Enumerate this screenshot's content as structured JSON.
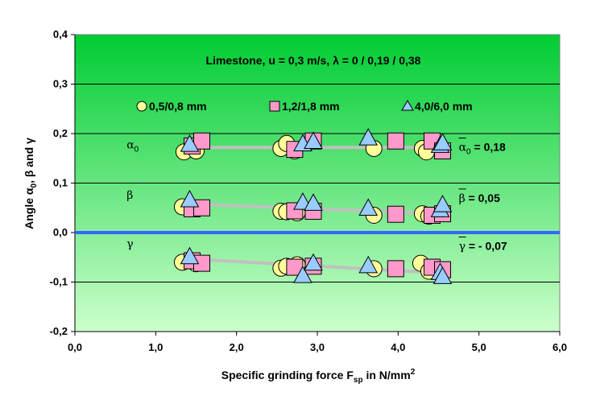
{
  "chart_data": {
    "type": "scatter",
    "title": "Limestone, u = 0,3 m/s, λ = 0 / 0,19 / 0,38",
    "xlabel": "Specific grinding force F",
    "xlabel_sub": "sp",
    "xlabel_unit": " in N/mm",
    "xlabel_sup": "2",
    "ylabel": "Angle α",
    "ylabel_sub": "0",
    "ylabel_rest": ", β and γ",
    "xlim": [
      0,
      6
    ],
    "ylim": [
      -0.2,
      0.4
    ],
    "x_ticks": [
      "0,0",
      "1,0",
      "2,0",
      "3,0",
      "4,0",
      "5,0",
      "6,0"
    ],
    "y_ticks": [
      "-0,2",
      "-0,1",
      "0,0",
      "0,1",
      "0,2",
      "0,3",
      "0,4"
    ],
    "grid": "horizontal",
    "legend": [
      "0,5/0,8 mm",
      "1,2/1,8 mm",
      "4,0/6,0 mm"
    ],
    "series": [
      {
        "name": "0,5/0,8 mm",
        "marker": "circle",
        "color": "#ffff99",
        "points": [
          [
            1.35,
            0.163
          ],
          [
            1.5,
            0.165
          ],
          [
            2.55,
            0.17
          ],
          [
            2.62,
            0.18
          ],
          [
            2.72,
            0.165
          ],
          [
            3.7,
            0.17
          ],
          [
            4.3,
            0.17
          ],
          [
            4.35,
            0.163
          ],
          [
            1.33,
            0.052
          ],
          [
            1.48,
            0.048
          ],
          [
            2.55,
            0.043
          ],
          [
            2.62,
            0.042
          ],
          [
            2.75,
            0.04
          ],
          [
            3.7,
            0.035
          ],
          [
            4.3,
            0.038
          ],
          [
            4.38,
            0.033
          ],
          [
            1.33,
            -0.06
          ],
          [
            1.5,
            -0.063
          ],
          [
            2.55,
            -0.072
          ],
          [
            2.62,
            -0.068
          ],
          [
            2.75,
            -0.065
          ],
          [
            3.7,
            -0.073
          ],
          [
            4.28,
            -0.062
          ],
          [
            4.38,
            -0.078
          ]
        ]
      },
      {
        "name": "1,2/1,8 mm",
        "marker": "square",
        "color": "#ff99cc",
        "points": [
          [
            1.45,
            0.175
          ],
          [
            1.57,
            0.185
          ],
          [
            2.72,
            0.168
          ],
          [
            2.95,
            0.185
          ],
          [
            3.97,
            0.185
          ],
          [
            4.42,
            0.185
          ],
          [
            4.55,
            0.165
          ],
          [
            1.45,
            0.048
          ],
          [
            1.57,
            0.05
          ],
          [
            2.72,
            0.044
          ],
          [
            2.95,
            0.043
          ],
          [
            3.97,
            0.037
          ],
          [
            4.42,
            0.035
          ],
          [
            4.55,
            0.038
          ],
          [
            1.45,
            -0.057
          ],
          [
            1.57,
            -0.062
          ],
          [
            2.72,
            -0.07
          ],
          [
            2.95,
            -0.068
          ],
          [
            3.97,
            -0.073
          ],
          [
            4.42,
            -0.07
          ],
          [
            4.55,
            -0.075
          ]
        ]
      },
      {
        "name": "4,0/6,0 mm",
        "marker": "triangle",
        "color": "#99ccff",
        "points": [
          [
            1.42,
            0.177
          ],
          [
            2.82,
            0.178
          ],
          [
            2.95,
            0.183
          ],
          [
            3.63,
            0.19
          ],
          [
            4.52,
            0.175
          ],
          [
            4.55,
            0.18
          ],
          [
            1.42,
            0.065
          ],
          [
            2.82,
            0.06
          ],
          [
            2.95,
            0.058
          ],
          [
            3.63,
            0.048
          ],
          [
            4.52,
            0.045
          ],
          [
            4.55,
            0.055
          ],
          [
            1.42,
            -0.05
          ],
          [
            2.82,
            -0.088
          ],
          [
            2.95,
            -0.063
          ],
          [
            3.63,
            -0.068
          ],
          [
            4.52,
            -0.082
          ],
          [
            4.55,
            -0.09
          ]
        ]
      }
    ],
    "trend_lines": [
      {
        "name": "α0",
        "points": [
          [
            1.4,
            0.172
          ],
          [
            4.55,
            0.172
          ]
        ]
      },
      {
        "name": "β",
        "points": [
          [
            1.4,
            0.058
          ],
          [
            4.55,
            0.038
          ]
        ]
      },
      {
        "name": "γ",
        "points": [
          [
            1.4,
            -0.053
          ],
          [
            4.55,
            -0.082
          ]
        ]
      }
    ],
    "zero_line": 0,
    "annotations": [
      {
        "text": "α",
        "sub": "0",
        "x": 0.64,
        "y": 0.17
      },
      {
        "text": "β",
        "x": 0.64,
        "y": 0.068
      },
      {
        "text": "γ",
        "x": 0.64,
        "y": -0.03
      },
      {
        "text": "α",
        "sub": "0",
        "rest": " = 0,18",
        "x": 4.75,
        "y": 0.165
      },
      {
        "text": "β",
        "rest": " = 0,05",
        "x": 4.75,
        "y": 0.062
      },
      {
        "text": "γ",
        "rest": " = - 0,07",
        "x": 4.75,
        "y": -0.035
      }
    ],
    "colors": {
      "bg_top": "#00cc33",
      "bg_bottom": "#ccffcc",
      "zero_line": "#3366ff",
      "trend": "#c0c0c0",
      "grid": "#000000"
    }
  }
}
